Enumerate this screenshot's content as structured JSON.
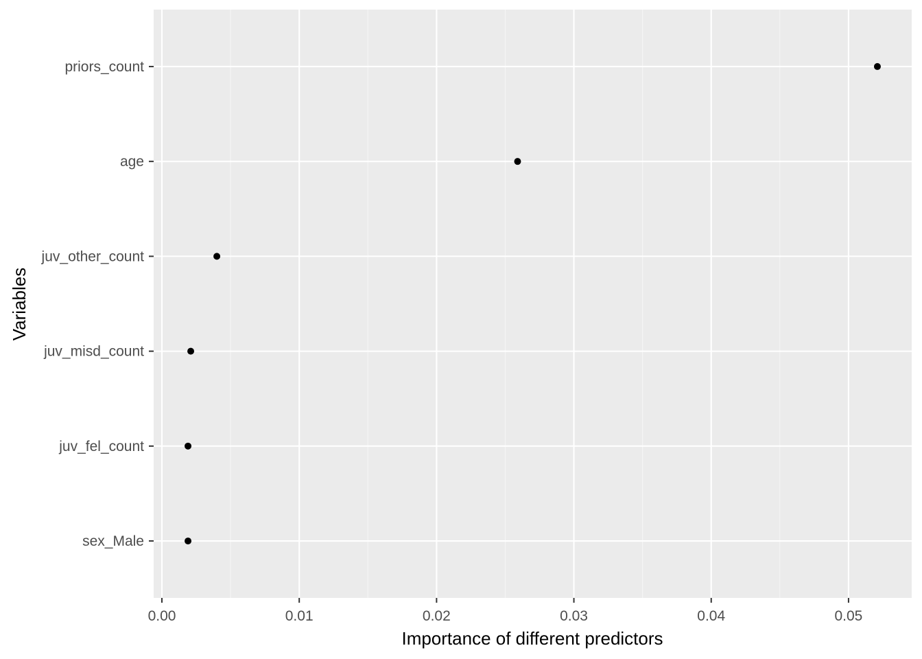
{
  "chart_data": {
    "type": "scatter",
    "title": "",
    "xlabel": "Importance of different predictors",
    "ylabel": "Variables",
    "categories": [
      "priors_count",
      "age",
      "juv_other_count",
      "juv_misd_count",
      "juv_fel_count",
      "sex_Male"
    ],
    "values": [
      0.0521,
      0.0259,
      0.004,
      0.0021,
      0.0019,
      0.0019
    ],
    "xlim": [
      -0.0006,
      0.0546
    ],
    "xticks": [
      0.0,
      0.01,
      0.02,
      0.03,
      0.04,
      0.05
    ],
    "xtick_labels": [
      "0.00",
      "0.01",
      "0.02",
      "0.03",
      "0.04",
      "0.05"
    ],
    "grid": true,
    "legend": "none",
    "colors": {
      "panel_background": "#ebebeb",
      "grid_major": "#ffffff",
      "grid_minor": "#f5f5f5",
      "point": "#000000",
      "tick_label": "#4d4d4d",
      "tick_mark": "#333333"
    }
  }
}
